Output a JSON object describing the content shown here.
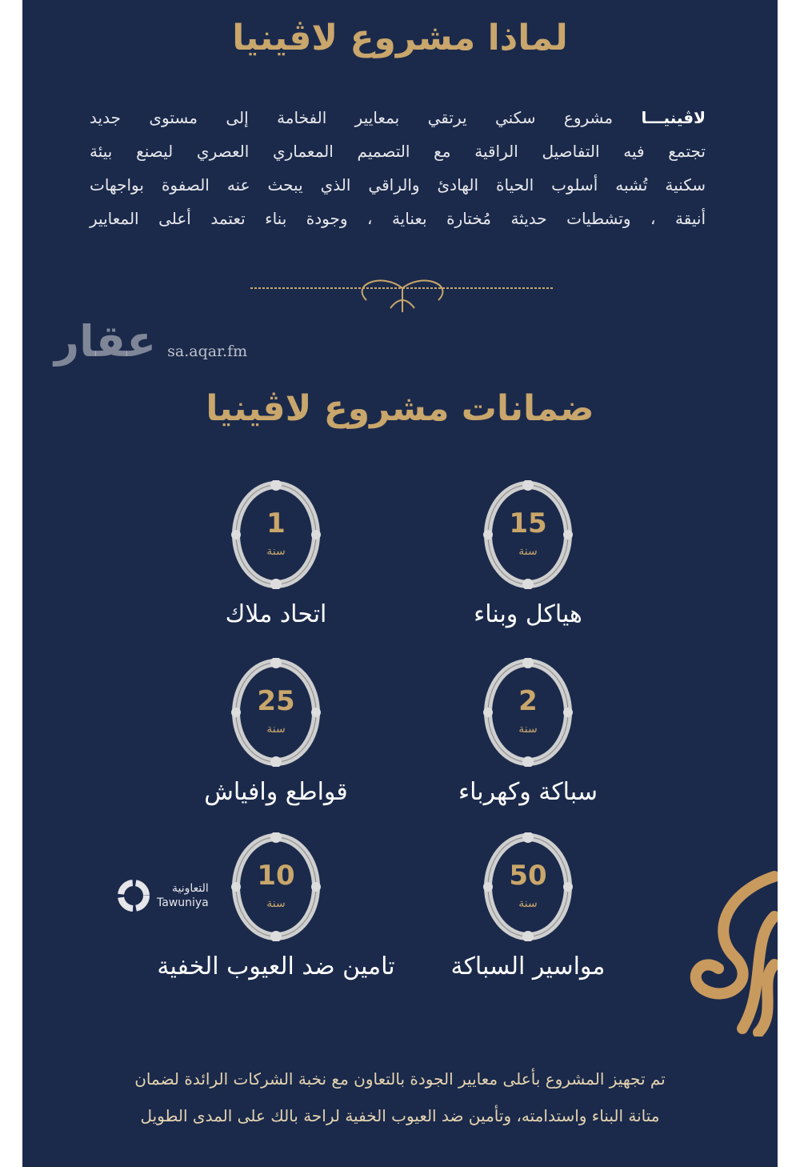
{
  "title": "لماذا مشروع لاڤينيا",
  "intro": {
    "brand": "لاڤينيـــا",
    "lines": [
      "مشروع سكني يرتقي بمعايير الفخامة إلى مستوى جديد",
      "تجتمع فيه التفاصيل الراقية مع التصميم المعماري العصري ليصنع بيئة",
      "سكنية تُشبه أسلوب الحياة الهادئ والراقي الذي يبحث عنه الصفوة بواجهات",
      "أنيقة ، وتشطيات حديثة مُختارة بعناية ، وجودة بناء تعتمد أعلى المعايير"
    ]
  },
  "watermark": {
    "logo": "عقار",
    "url": "sa.aqar.fm"
  },
  "guarantees_title": "ضمانات مشروع لاڤينيا",
  "year_label": "سنة",
  "guarantees": [
    {
      "years": "15",
      "label": "هياكل وبناء"
    },
    {
      "years": "1",
      "label": "اتحاد ملاك"
    },
    {
      "years": "2",
      "label": "سباكة وكهرباء"
    },
    {
      "years": "25",
      "label": "قواطع وافياش"
    },
    {
      "years": "50",
      "label": "مواسير السباكة"
    },
    {
      "years": "10",
      "label": "تامين ضد العيوب الخفية"
    }
  ],
  "partner": {
    "name_ar": "التعاونية",
    "name_en": "Tawuniya"
  },
  "bottom": [
    "تم تجهيز المشروع بأعلى معايير الجودة بالتعاون مع نخبة الشركات الرائدة لضمان",
    "متانة البناء واستدامته، وتأمين ضد العيوب الخفية لراحة بالك على المدى الطويل"
  ],
  "colors": {
    "background": "#1b2a4b",
    "gold": "#c9a66b"
  }
}
